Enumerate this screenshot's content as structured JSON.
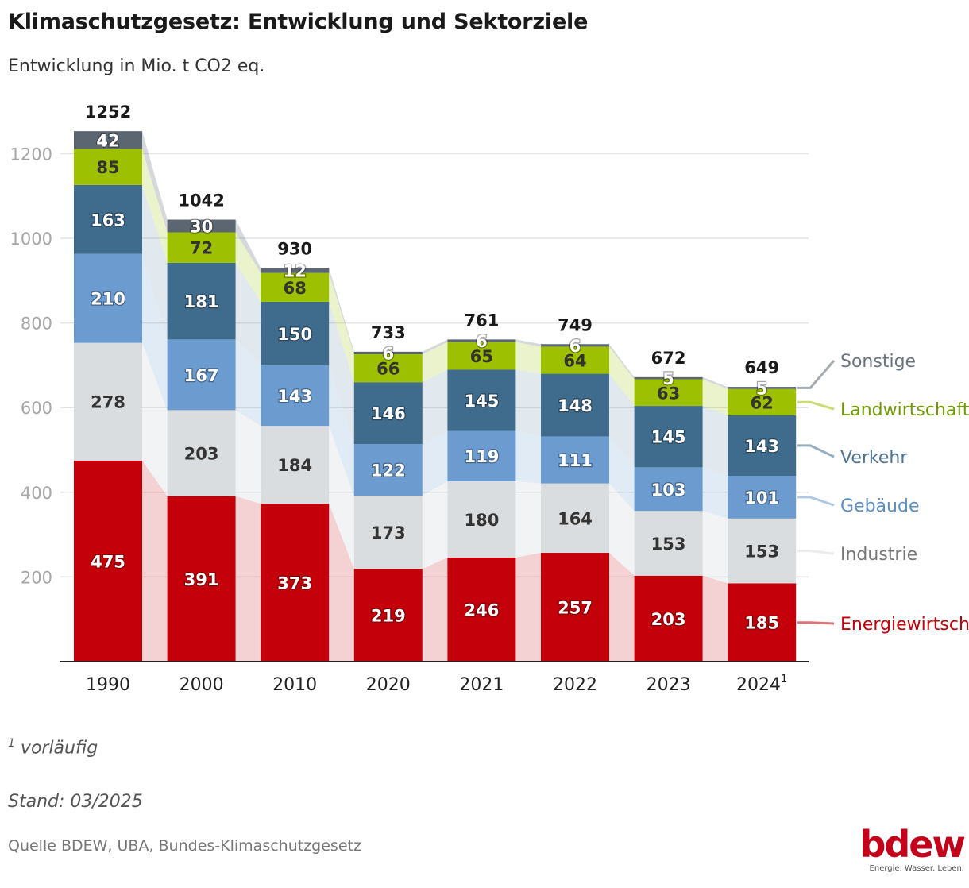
{
  "title": "Klimaschutzgesetz: Entwicklung und Sektorziele",
  "subtitle": "Entwicklung in Mio. t CO2 eq.",
  "footnote_marker": "1",
  "footnote_text": "vorläufig",
  "stand": "Stand: 03/2025",
  "source": "Quelle BDEW, UBA, Bundes-Klimaschutzgesetz",
  "logo": {
    "word": "bdew",
    "tagline": "Energie. Wasser. Leben."
  },
  "chart_data": {
    "type": "bar",
    "stacked": true,
    "categories": [
      "1990",
      "2000",
      "2010",
      "2020",
      "2021",
      "2022",
      "2023",
      "2024"
    ],
    "category_superscripts": [
      "",
      "",
      "",
      "",
      "",
      "",
      "",
      "1"
    ],
    "totals": [
      1252,
      1042,
      930,
      733,
      761,
      749,
      672,
      649
    ],
    "y_ticks": [
      "200",
      "400",
      "600",
      "800",
      "1000",
      "1200"
    ],
    "ylim": [
      0,
      1250
    ],
    "grid": true,
    "legend_placement": "right, aligned with last bar",
    "series": [
      {
        "name": "Energiewirtschaft",
        "color": "#c4000a",
        "label_color": "#c4000a",
        "values": [
          475,
          391,
          373,
          219,
          246,
          257,
          203,
          185
        ]
      },
      {
        "name": "Industrie",
        "color": "#d9dde0",
        "label_color": "#777777",
        "values": [
          278,
          203,
          184,
          173,
          180,
          164,
          153,
          153
        ]
      },
      {
        "name": "Gebäude",
        "color": "#6b9bcf",
        "label_color": "#5d8ec4",
        "values": [
          210,
          167,
          143,
          122,
          119,
          111,
          103,
          101
        ]
      },
      {
        "name": "Verkehr",
        "color": "#3f6b8d",
        "label_color": "#4e7494",
        "values": [
          163,
          181,
          150,
          146,
          145,
          148,
          145,
          143
        ]
      },
      {
        "name": "Landwirtschaft",
        "color": "#9dc100",
        "label_color": "#6e9a00",
        "values": [
          85,
          72,
          68,
          66,
          65,
          64,
          63,
          62
        ]
      },
      {
        "name": "Sonstige",
        "color": "#5b6670",
        "label_color": "#6b7580",
        "values": [
          42,
          30,
          12,
          6,
          6,
          6,
          5,
          5
        ]
      }
    ]
  }
}
